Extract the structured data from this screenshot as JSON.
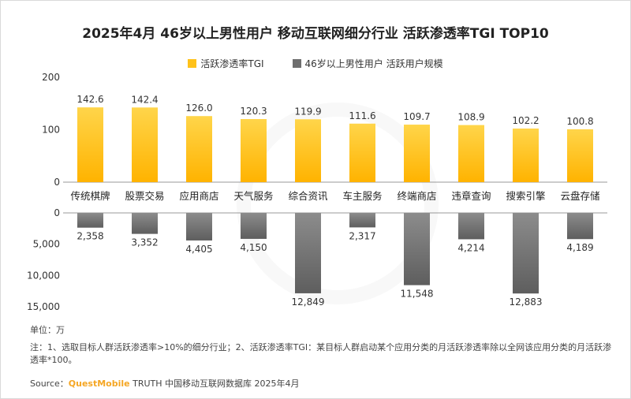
{
  "title": "2025年4月 46岁以上男性用户 移动互联网细分行业 活跃渗透率TGI TOP10",
  "legend": {
    "tgi_label": "活跃渗透率TGI",
    "users_label": "46岁以上男性用户 活跃用户规模"
  },
  "unit_note": "单位：万",
  "note": "注：1、选取目标人群活跃渗透率>10%的细分行业；2、活跃渗透率TGI：某目标人群启动某个应用分类的月活跃渗透率除以全网该应用分类的月活跃渗透率*100。",
  "source": {
    "prefix": "Source：",
    "brand": "QuestMobile",
    "suffix": "TRUTH 中国移动互联网数据库 2025年4月"
  },
  "colors": {
    "tgi_top": "#ffd54a",
    "tgi_bottom": "#ffb300",
    "users_top": "#8c8c8c",
    "users_bottom": "#5e5e5e"
  },
  "chart_data": [
    {
      "type": "bar",
      "categories": [
        "传统棋牌",
        "股票交易",
        "应用商店",
        "天气服务",
        "综合资讯",
        "车主服务",
        "终端商店",
        "违章查询",
        "搜索引擎",
        "云盘存储"
      ],
      "series": [
        {
          "name": "活跃渗透率TGI",
          "values": [
            142.6,
            142.4,
            126.0,
            120.3,
            119.9,
            111.6,
            109.7,
            108.9,
            102.2,
            100.8
          ]
        }
      ],
      "data_labels": [
        "142.6",
        "142.4",
        "126.0",
        "120.3",
        "119.9",
        "111.6",
        "109.7",
        "108.9",
        "102.2",
        "100.8"
      ],
      "ylim": [
        0,
        200
      ],
      "yticks": [
        "0",
        "100",
        "200"
      ]
    },
    {
      "type": "bar",
      "categories": [
        "传统棋牌",
        "股票交易",
        "应用商店",
        "天气服务",
        "综合资讯",
        "车主服务",
        "终端商店",
        "违章查询",
        "搜索引擎",
        "云盘存储"
      ],
      "series": [
        {
          "name": "46岁以上男性用户 活跃用户规模",
          "values": [
            2358,
            3352,
            4405,
            4150,
            12849,
            2317,
            11548,
            4214,
            12883,
            4189
          ]
        }
      ],
      "data_labels": [
        "2,358",
        "3,352",
        "4,405",
        "4,150",
        "12,849",
        "2,317",
        "11,548",
        "4,214",
        "12,883",
        "4,189"
      ],
      "ylim": [
        0,
        15000
      ],
      "yticks": [
        "0",
        "5,000",
        "10,000",
        "15,000"
      ],
      "inverted": true
    }
  ]
}
